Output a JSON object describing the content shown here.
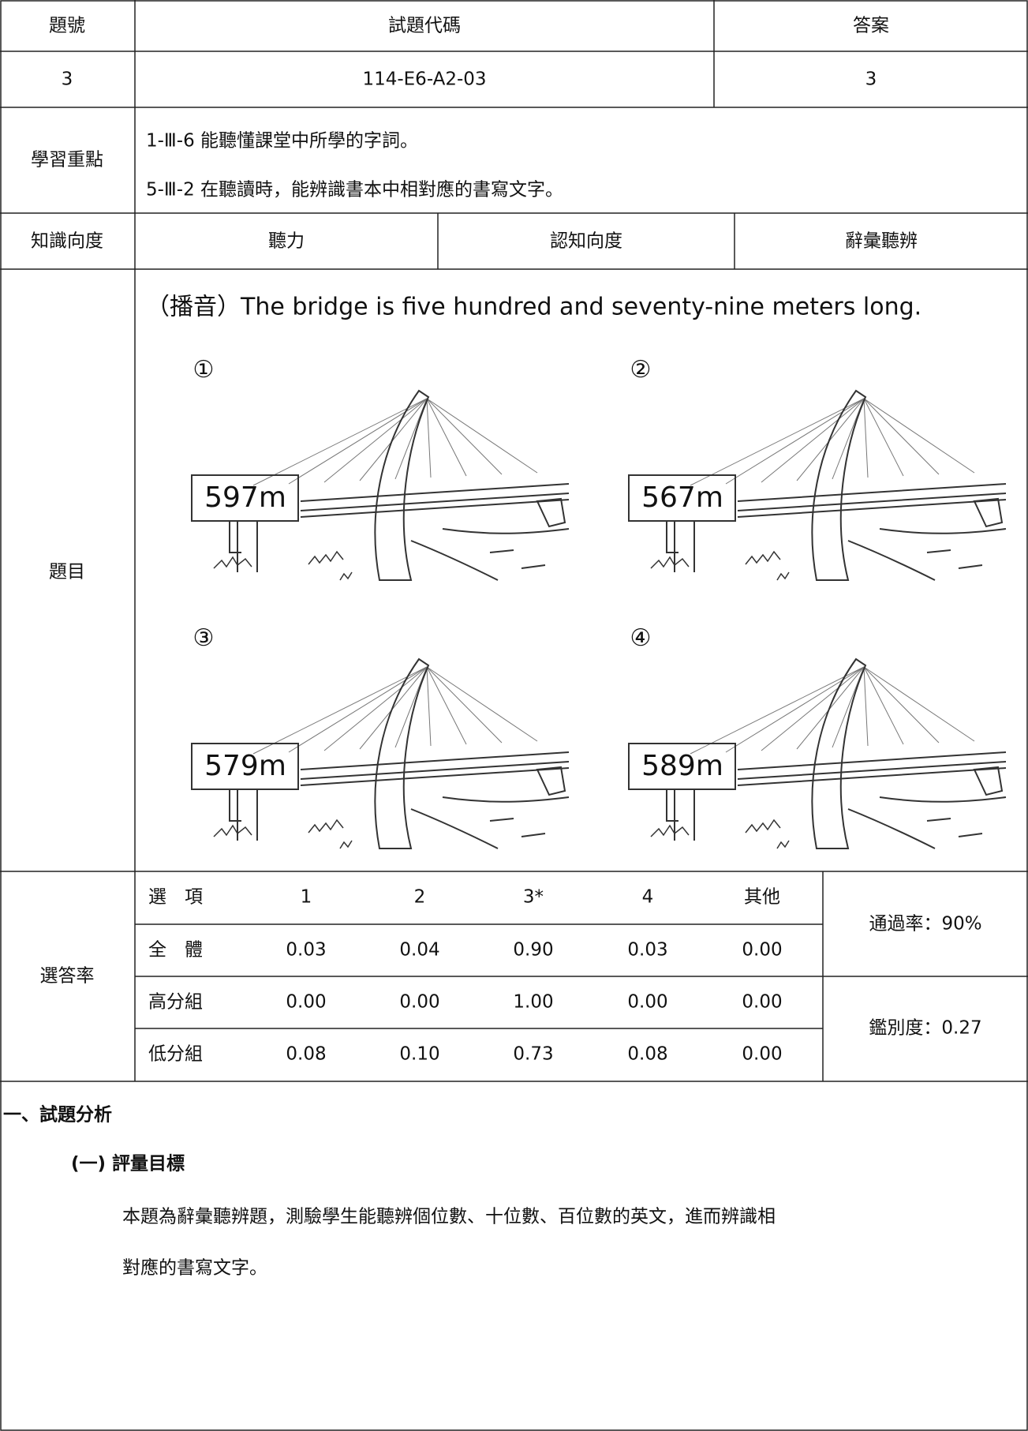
{
  "header": {
    "columns": [
      "題號",
      "試題代碼",
      "答案"
    ],
    "values": [
      "3",
      "114-E6-A2-03",
      "3"
    ]
  },
  "learning_focus": {
    "label": "學習重點",
    "items": [
      "1-Ⅲ-6 能聽懂課堂中所學的字詞。",
      "5-Ⅲ-2 在聽讀時，能辨識書本中相對應的書寫文字。"
    ]
  },
  "knowledge": {
    "label": "知識向度",
    "value": "聽力",
    "cognitive_label": "認知向度",
    "cognitive_value": "辭彙聽辨"
  },
  "question": {
    "label": "題目",
    "prompt": "（播音）The bridge is five hundred and seventy-nine meters long.",
    "options": [
      {
        "marker": "①",
        "sign": "597m"
      },
      {
        "marker": "②",
        "sign": "567m"
      },
      {
        "marker": "③",
        "sign": "579m"
      },
      {
        "marker": "④",
        "sign": "589m"
      }
    ]
  },
  "answer_rates": {
    "label": "選答率",
    "header": [
      "選　項",
      "1",
      "2",
      "3*",
      "4",
      "其他"
    ],
    "rows": [
      [
        "全　體",
        "0.03",
        "0.04",
        "0.90",
        "0.03",
        "0.00"
      ],
      [
        "高分組",
        "0.00",
        "0.00",
        "1.00",
        "0.00",
        "0.00"
      ],
      [
        "低分組",
        "0.08",
        "0.10",
        "0.73",
        "0.08",
        "0.00"
      ]
    ],
    "pass_rate": "通過率：90%",
    "discrimination": "鑑別度：0.27"
  },
  "analysis": {
    "heading": "一、試題分析",
    "subheading": "(一) 評量目標",
    "paragraph_lines": [
      "本題為辭彙聽辨題，測驗學生能聽辨個位數、十位數、百位數的英文，進而辨識相",
      "對應的書寫文字。"
    ]
  }
}
